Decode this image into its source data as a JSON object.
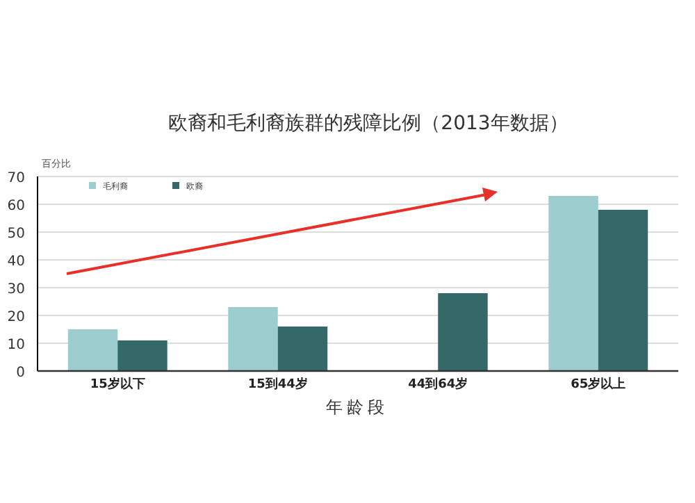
{
  "chart_data": {
    "type": "bar",
    "title": "欧裔和毛利裔族群的残障比例（2013年数据）",
    "xlabel": "年龄段",
    "ylabel": "百分比",
    "categories": [
      "15岁以下",
      "15到44岁",
      "44到64岁",
      "65岁以上"
    ],
    "series": [
      {
        "name": "毛利裔",
        "color": "#9ecdd0",
        "values": [
          15,
          23,
          null,
          63
        ]
      },
      {
        "name": "欧裔",
        "color": "#356868",
        "values": [
          11,
          16,
          28,
          58
        ]
      }
    ],
    "ylim": [
      0,
      70
    ],
    "yticks": [
      0,
      10,
      20,
      30,
      40,
      50,
      60,
      70
    ],
    "grid": "y",
    "legend": "top left"
  }
}
